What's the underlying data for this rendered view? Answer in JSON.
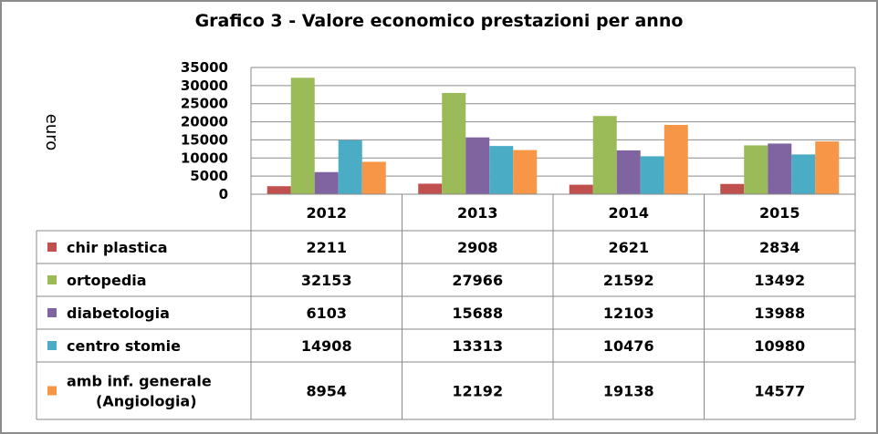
{
  "chart_data": {
    "type": "bar",
    "title": "Grafico 3 - Valore economico prestazioni per anno",
    "ylabel": "euro",
    "xlabel": "",
    "categories": [
      "2012",
      "2013",
      "2014",
      "2015"
    ],
    "ylim": [
      0,
      35000
    ],
    "yticks": [
      "0",
      "5000",
      "10000",
      "15000",
      "20000",
      "25000",
      "30000",
      "35000"
    ],
    "grid": true,
    "legend_placement": "data table (left)",
    "series": [
      {
        "name": "chir plastica",
        "values": [
          2211,
          2908,
          2621,
          2834
        ],
        "color": "#c0504d"
      },
      {
        "name": "ortopedia",
        "values": [
          32153,
          27966,
          21592,
          13492
        ],
        "color": "#9bbb59"
      },
      {
        "name": "diabetologia",
        "values": [
          6103,
          15688,
          12103,
          13988
        ],
        "color": "#8064a2"
      },
      {
        "name": "centro stomie",
        "values": [
          14908,
          13313,
          10476,
          10980
        ],
        "color": "#4bacc6"
      },
      {
        "name": "amb inf. generale (Angiologia)",
        "name_lines": [
          "amb inf. generale",
          "(Angiologia)"
        ],
        "values": [
          8954,
          12192,
          19138,
          14577
        ],
        "color": "#f79646"
      }
    ]
  }
}
